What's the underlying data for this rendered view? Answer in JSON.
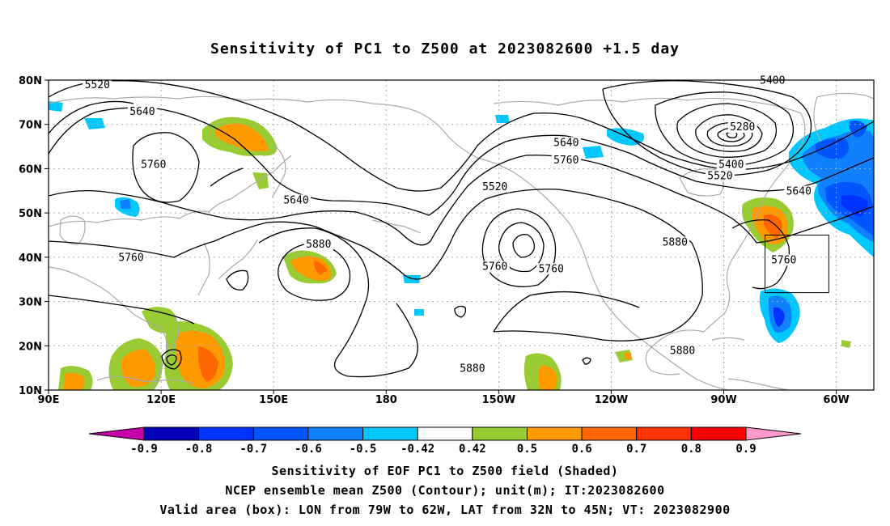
{
  "title": "Sensitivity of PC1 to Z500 at 2023082600 +1.5 day",
  "captions": [
    "Sensitivity of EOF PC1 to Z500 field (Shaded)",
    "NCEP ensemble mean Z500 (Contour); unit(m); IT:2023082600",
    "Valid area (box): LON from 79W to 62W, LAT from 32N to 45N; VT: 2023082900"
  ],
  "map": {
    "lon_ticks": [
      "90E",
      "120E",
      "150E",
      "180",
      "150W",
      "120W",
      "90W",
      "60W"
    ],
    "lat_ticks": [
      "80N",
      "70N",
      "60N",
      "50N",
      "40N",
      "30N",
      "20N",
      "10N"
    ],
    "lon_range": [
      90,
      310
    ],
    "lat_range": [
      10,
      80
    ],
    "valid_box": {
      "lon_range": [
        281,
        298
      ],
      "lat_range": [
        32,
        45
      ]
    },
    "contour_labels": [
      {
        "text": "5520",
        "lon": 103,
        "lat": 78.5
      },
      {
        "text": "5640",
        "lon": 115,
        "lat": 72.5
      },
      {
        "text": "5760",
        "lon": 118,
        "lat": 60.5
      },
      {
        "text": "5640",
        "lon": 156,
        "lat": 52.5
      },
      {
        "text": "5760",
        "lon": 112,
        "lat": 39.5
      },
      {
        "text": "5880",
        "lon": 162,
        "lat": 42.5
      },
      {
        "text": "5520",
        "lon": 209,
        "lat": 55.5
      },
      {
        "text": "5760",
        "lon": 209,
        "lat": 37.5
      },
      {
        "text": "5640",
        "lon": 228,
        "lat": 65.5
      },
      {
        "text": "5760",
        "lon": 228,
        "lat": 61.5
      },
      {
        "text": "5760",
        "lon": 224,
        "lat": 37
      },
      {
        "text": "5880",
        "lon": 257,
        "lat": 43
      },
      {
        "text": "5880",
        "lon": 203,
        "lat": 14.5
      },
      {
        "text": "5880",
        "lon": 259,
        "lat": 18.5
      },
      {
        "text": "5400",
        "lon": 283,
        "lat": 79.5
      },
      {
        "text": "5280",
        "lon": 275,
        "lat": 69
      },
      {
        "text": "5400",
        "lon": 272,
        "lat": 60.5
      },
      {
        "text": "5520",
        "lon": 269,
        "lat": 58
      },
      {
        "text": "5640",
        "lon": 290,
        "lat": 54.5
      },
      {
        "text": "5760",
        "lon": 286,
        "lat": 39
      }
    ],
    "colors": {
      "coast": "#aaaaaa",
      "grid": "#aaaaaa",
      "contour": "#000000",
      "box": "#000000"
    }
  },
  "colorbar": {
    "labels": [
      "-0.9",
      "-0.8",
      "-0.7",
      "-0.6",
      "-0.5",
      "-0.42",
      "0.42",
      "0.5",
      "0.6",
      "0.7",
      "0.8",
      "0.9"
    ],
    "colors": [
      "#c400a8",
      "#0000b8",
      "#0033ff",
      "#0055ff",
      "#1080ff",
      "#00c8ff",
      "#ffffff",
      "#99cc33",
      "#ff9900",
      "#ff6600",
      "#ff3300",
      "#ff0000",
      "#ff99cc"
    ]
  }
}
